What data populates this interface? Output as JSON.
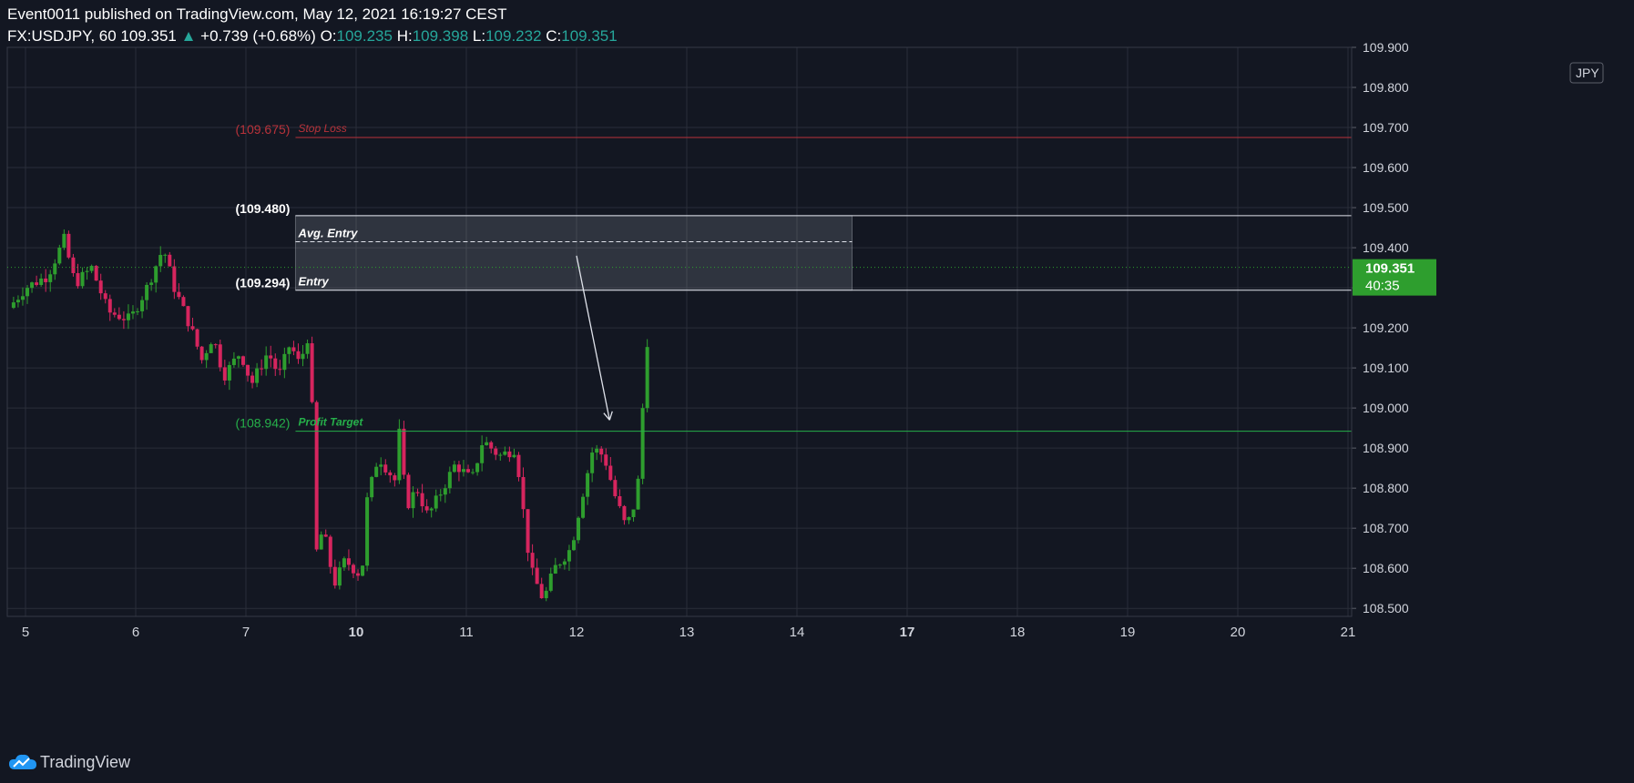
{
  "header": {
    "publisher": "Event0011",
    "published_text": "published on TradingView.com, May 12, 2021 16:19:27 CEST",
    "symbol": "FX:USDJPY, 60",
    "last": "109.351",
    "change": "+0.739 (+0.68%)",
    "o_label": "O:",
    "o": "109.235",
    "h_label": "H:",
    "h": "109.398",
    "l_label": "L:",
    "l": "109.232",
    "c_label": "C:",
    "c": "109.351"
  },
  "currency_label": "JPY",
  "price_tag": {
    "price": "109.351",
    "countdown": "40:35"
  },
  "brand": "TradingView",
  "colors": {
    "up": "#26a69a",
    "bull": "#2e9e2e",
    "bear": "#d6255e",
    "stop": "#b8323a",
    "target": "#26b04a",
    "bg": "#131722"
  },
  "chart_data": {
    "type": "candlestick",
    "ylim": [
      108.48,
      109.9
    ],
    "y_ticks": [
      "109.900",
      "109.800",
      "109.700",
      "109.600",
      "109.500",
      "109.400",
      "109.300",
      "109.200",
      "109.100",
      "109.000",
      "108.900",
      "108.800",
      "108.700",
      "108.600",
      "108.500"
    ],
    "x_ticks": [
      {
        "label": "5",
        "day": 0,
        "bold": false
      },
      {
        "label": "6",
        "day": 1,
        "bold": false
      },
      {
        "label": "7",
        "day": 2,
        "bold": false
      },
      {
        "label": "10",
        "day": 3,
        "bold": true
      },
      {
        "label": "11",
        "day": 4,
        "bold": false
      },
      {
        "label": "12",
        "day": 5,
        "bold": false
      },
      {
        "label": "13",
        "day": 6,
        "bold": false
      },
      {
        "label": "14",
        "day": 7,
        "bold": false
      },
      {
        "label": "17",
        "day": 8,
        "bold": true
      },
      {
        "label": "18",
        "day": 9,
        "bold": false
      },
      {
        "label": "19",
        "day": 10,
        "bold": false
      },
      {
        "label": "20",
        "day": 11,
        "bold": false
      },
      {
        "label": "21",
        "day": 12,
        "bold": false
      }
    ],
    "levels": [
      {
        "name": "Stop Loss",
        "price_label": "(109.675)",
        "value": 109.675
      },
      {
        "name": "Profit Target",
        "price_label": "(108.942)",
        "value": 108.942
      }
    ],
    "entry_zone": {
      "top_label": "(109.480)",
      "top": 109.48,
      "bottom_label": "(109.294)",
      "bottom": 109.294,
      "avg_name": "Avg. Entry",
      "avg": 109.415,
      "entry_name": "Entry",
      "start_day": 2.45,
      "end_day": 7.5
    },
    "arrow": {
      "from": [
        5.0,
        109.38
      ],
      "to": [
        5.3,
        108.97
      ]
    },
    "anchors": [
      [
        -0.15,
        109.25
      ],
      [
        0.0,
        109.3
      ],
      [
        0.2,
        109.33
      ],
      [
        0.35,
        109.42
      ],
      [
        0.45,
        109.31
      ],
      [
        0.6,
        109.35
      ],
      [
        0.75,
        109.24
      ],
      [
        0.95,
        109.22
      ],
      [
        1.1,
        109.3
      ],
      [
        1.25,
        109.4
      ],
      [
        1.35,
        109.3
      ],
      [
        1.5,
        109.2
      ],
      [
        1.6,
        109.12
      ],
      [
        1.7,
        109.18
      ],
      [
        1.8,
        109.08
      ],
      [
        1.95,
        109.14
      ],
      [
        2.05,
        109.06
      ],
      [
        2.2,
        109.14
      ],
      [
        2.3,
        109.08
      ],
      [
        2.4,
        109.16
      ],
      [
        2.5,
        109.1
      ],
      [
        2.55,
        109.21
      ],
      [
        2.6,
        109.0
      ],
      [
        2.62,
        108.62
      ],
      [
        2.7,
        108.7
      ],
      [
        2.8,
        108.56
      ],
      [
        2.9,
        108.62
      ],
      [
        3.05,
        108.58
      ],
      [
        3.1,
        108.77
      ],
      [
        3.2,
        108.88
      ],
      [
        3.35,
        108.82
      ],
      [
        3.4,
        108.96
      ],
      [
        3.45,
        108.75
      ],
      [
        3.55,
        108.8
      ],
      [
        3.65,
        108.73
      ],
      [
        3.75,
        108.78
      ],
      [
        3.9,
        108.86
      ],
      [
        4.05,
        108.82
      ],
      [
        4.15,
        108.92
      ],
      [
        4.3,
        108.88
      ],
      [
        4.45,
        108.9
      ],
      [
        4.5,
        108.78
      ],
      [
        4.58,
        108.6
      ],
      [
        4.7,
        108.52
      ],
      [
        4.8,
        108.6
      ],
      [
        4.95,
        108.65
      ],
      [
        5.05,
        108.78
      ],
      [
        5.15,
        108.9
      ],
      [
        5.25,
        108.88
      ],
      [
        5.35,
        108.78
      ],
      [
        5.45,
        108.7
      ],
      [
        5.55,
        108.78
      ],
      [
        5.6,
        109.0
      ],
      [
        5.65,
        109.2
      ],
      [
        5.68,
        109.35
      ]
    ],
    "last_price": 109.351
  }
}
